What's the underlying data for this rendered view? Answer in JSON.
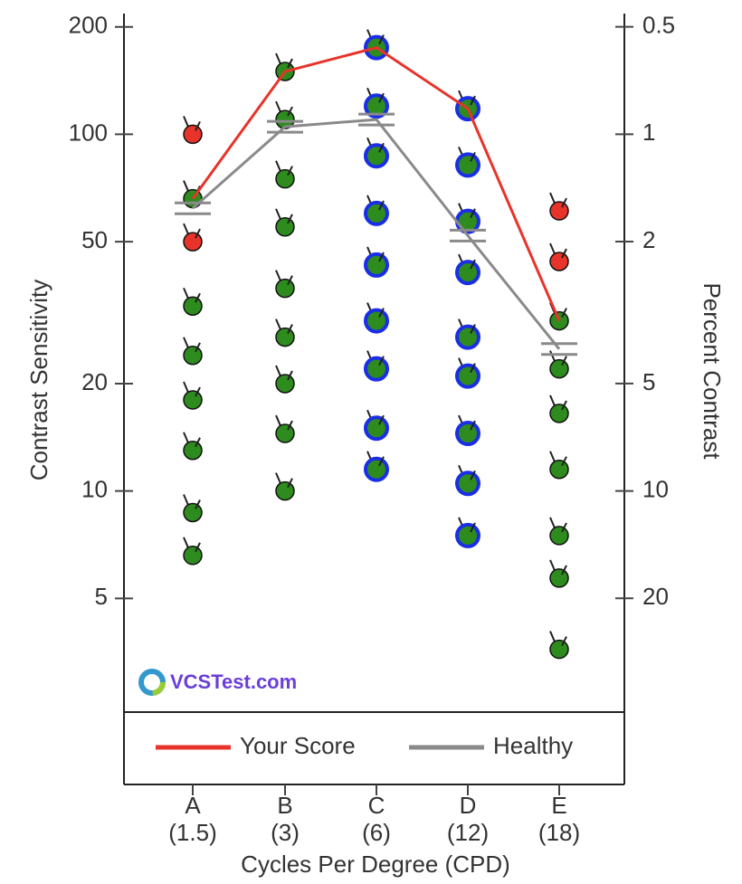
{
  "chart_data": {
    "type": "line",
    "y_axis_label": "Contrast Sensitivity",
    "y2_axis_label": "Percent Contrast",
    "x_axis_label": "Cycles Per Degree (CPD)",
    "watermark": "VCSTest.com",
    "categories": [
      "A",
      "B",
      "C",
      "D",
      "E"
    ],
    "category_sublabels": [
      "(1.5)",
      "(3)",
      "(6)",
      "(12)",
      "(18)"
    ],
    "log_scale": true,
    "ylim": [
      2.4,
      218
    ],
    "yticks": [
      5,
      10,
      20,
      50,
      100,
      200
    ],
    "y2lim": [
      41.67,
      0.459
    ],
    "y2ticks": [
      20,
      10,
      5,
      2,
      1,
      0.5
    ],
    "legend": "bottom",
    "series": [
      {
        "name": "Your Score",
        "color": "#e8332a",
        "values": [
          66,
          150,
          175,
          118,
          30
        ]
      },
      {
        "name": "Healthy",
        "color": "#8a8a8a",
        "values": [
          62,
          105,
          110,
          52,
          25
        ]
      }
    ],
    "stimuli": [
      {
        "values": [
          100,
          66,
          50,
          33,
          24,
          18,
          13,
          8.7,
          6.6
        ],
        "colors": [
          "#e8332a",
          "#2e8b1e",
          "#e8332a",
          "#2e8b1e",
          "#2e8b1e",
          "#2e8b1e",
          "#2e8b1e",
          "#2e8b1e",
          "#2e8b1e"
        ]
      },
      {
        "values": [
          150,
          110,
          75,
          55,
          37,
          27,
          20,
          14.5,
          10
        ],
        "colors": [
          "#2e8b1e",
          "#2e8b1e",
          "#2e8b1e",
          "#2e8b1e",
          "#2e8b1e",
          "#2e8b1e",
          "#2e8b1e",
          "#2e8b1e",
          "#2e8b1e"
        ]
      },
      {
        "values": [
          175,
          120,
          87,
          60,
          43,
          30,
          22,
          15,
          11.5
        ],
        "colors": [
          "#1a2ee6",
          "#1a2ee6",
          "#1a2ee6",
          "#1a2ee6",
          "#1a2ee6",
          "#1a2ee6",
          "#1a2ee6",
          "#1a2ee6",
          "#1a2ee6"
        ]
      },
      {
        "values": [
          118,
          82,
          57,
          41,
          27,
          21,
          14.5,
          10.5,
          7.5
        ],
        "colors": [
          "#1a2ee6",
          "#1a2ee6",
          "#1a2ee6",
          "#1a2ee6",
          "#1a2ee6",
          "#1a2ee6",
          "#1a2ee6",
          "#1a2ee6",
          "#1a2ee6"
        ]
      },
      {
        "values": [
          61,
          44,
          30,
          22,
          16.5,
          11.5,
          7.5,
          5.7,
          3.6
        ],
        "colors": [
          "#e8332a",
          "#e8332a",
          "#2e8b1e",
          "#2e8b1e",
          "#2e8b1e",
          "#2e8b1e",
          "#2e8b1e",
          "#2e8b1e",
          "#2e8b1e"
        ]
      }
    ]
  }
}
